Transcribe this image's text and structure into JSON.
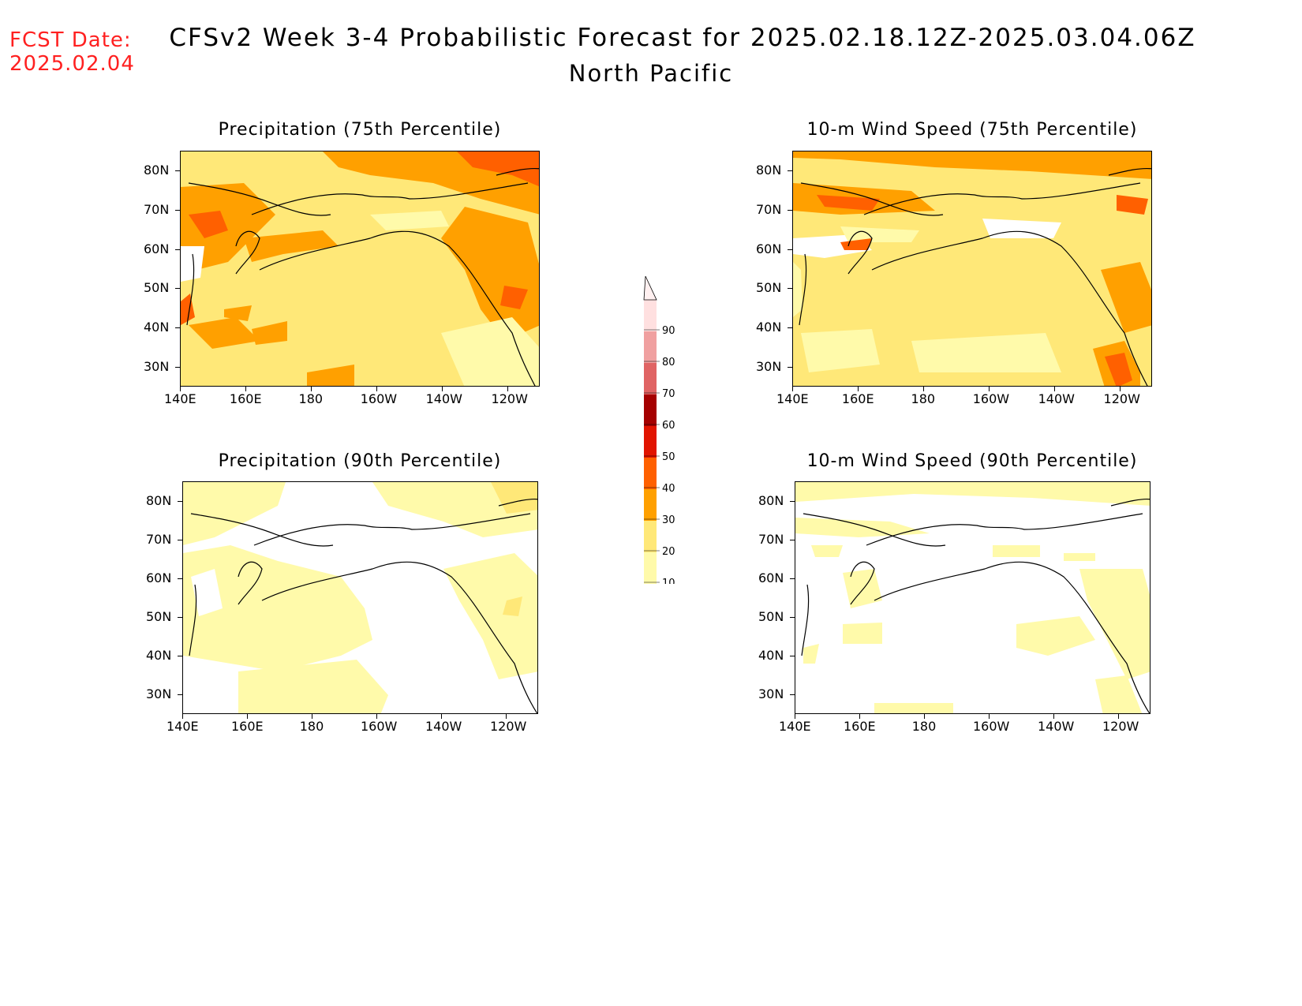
{
  "header": {
    "fcst_label": "FCST Date:",
    "fcst_date": "2025.02.04",
    "title": "CFSv2 Week 3-4 Probabilistic Forecast for 2025.02.18.12Z-2025.03.04.06Z",
    "subtitle": "North Pacific"
  },
  "axes": {
    "lon_labels": [
      "140E",
      "160E",
      "180",
      "160W",
      "140W",
      "120W"
    ],
    "lat_labels": [
      "80N",
      "70N",
      "60N",
      "50N",
      "40N",
      "30N"
    ]
  },
  "panels": [
    {
      "id": "precip75",
      "title": "Precipitation (75th Percentile)"
    },
    {
      "id": "wind75",
      "title": "10-m Wind Speed (75th Percentile)"
    },
    {
      "id": "precip90",
      "title": "Precipitation (90th Percentile)"
    },
    {
      "id": "wind90",
      "title": "10-m Wind Speed (90th Percentile)"
    }
  ],
  "colorbar": {
    "levels": [
      "10",
      "20",
      "30",
      "40",
      "50",
      "60",
      "70",
      "80",
      "90"
    ],
    "colors": [
      "#fffaaa",
      "#ffe878",
      "#ffa000",
      "#ff6000",
      "#e11400",
      "#a50000",
      "#e06464",
      "#f0a0a0",
      "#ffe0e0"
    ]
  }
}
